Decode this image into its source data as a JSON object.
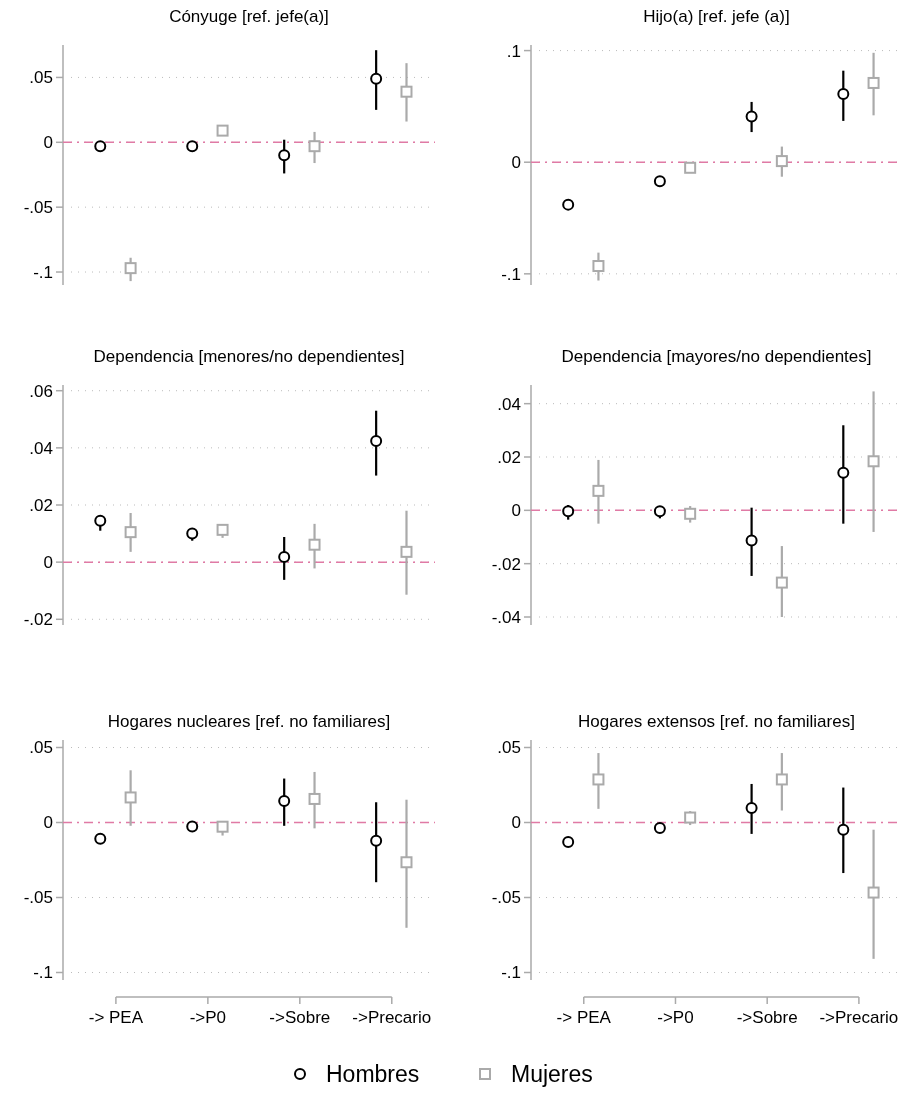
{
  "chart_data": [
    {
      "type": "scatter",
      "title": "Cónyuge [ref.  jefe(a)]",
      "categories": [
        null,
        null,
        null,
        null
      ],
      "ylim": [
        -0.11,
        0.075
      ],
      "yticks": [
        {
          "value": -0.1,
          "label": "-.1"
        },
        {
          "value": -0.05,
          "label": "-.05"
        },
        {
          "value": 0,
          "label": "0"
        },
        {
          "value": 0.05,
          "label": ".05"
        }
      ],
      "grid": "y",
      "tick_labels": "y",
      "legend": false,
      "ref_lines": [
        {
          "axis": "y",
          "value": 0,
          "color": "#e07aa5",
          "line_style": "dashed"
        }
      ],
      "series": [
        {
          "color": "#000000",
          "marker": "circle",
          "values": [
            -0.003,
            -0.003,
            -0.01,
            0.049
          ],
          "errors": [
            [
              -0.005,
              -0.001
            ],
            [
              -0.006,
              0.0
            ],
            [
              -0.024,
              0.002
            ],
            [
              0.025,
              0.071
            ]
          ]
        },
        {
          "color": "#aaaaaa",
          "marker": "square",
          "values": [
            -0.097,
            0.009,
            -0.003,
            0.039
          ],
          "errors": [
            [
              -0.107,
              -0.089
            ],
            [
              0.007,
              0.011
            ],
            [
              -0.016,
              0.008
            ],
            [
              0.016,
              0.061
            ]
          ]
        }
      ]
    },
    {
      "type": "scatter",
      "title": "Hijo(a) [ref.  jefe (a)]",
      "categories": [
        null,
        null,
        null,
        null
      ],
      "ylim": [
        -0.11,
        0.105
      ],
      "yticks": [
        {
          "value": -0.1,
          "label": "-.1"
        },
        {
          "value": 0,
          "label": "0"
        },
        {
          "value": 0.1,
          "label": ".1"
        }
      ],
      "grid": "y",
      "tick_labels": "y",
      "legend": false,
      "ref_lines": [
        {
          "axis": "y",
          "value": 0,
          "color": "#e07aa5",
          "line_style": "dashed"
        }
      ],
      "series": [
        {
          "color": "#000000",
          "marker": "circle",
          "values": [
            -0.038,
            -0.017,
            0.041,
            0.061
          ],
          "errors": [
            [
              -0.042,
              -0.034
            ],
            [
              -0.019,
              -0.015
            ],
            [
              0.027,
              0.054
            ],
            [
              0.037,
              0.082
            ]
          ]
        },
        {
          "color": "#aaaaaa",
          "marker": "square",
          "values": [
            -0.093,
            -0.005,
            0.001,
            0.071
          ],
          "errors": [
            [
              -0.106,
              -0.081
            ],
            [
              -0.008,
              -0.002
            ],
            [
              -0.013,
              0.014
            ],
            [
              0.042,
              0.098
            ]
          ]
        }
      ]
    },
    {
      "type": "scatter",
      "title": "Dependencia [menores/no dependientes]",
      "categories": [
        null,
        null,
        null,
        null
      ],
      "ylim": [
        -0.022,
        0.062
      ],
      "yticks": [
        {
          "value": -0.02,
          "label": "-.02"
        },
        {
          "value": 0,
          "label": "0"
        },
        {
          "value": 0.02,
          "label": ".02"
        },
        {
          "value": 0.04,
          "label": ".04"
        },
        {
          "value": 0.06,
          "label": ".06"
        }
      ],
      "grid": "y",
      "tick_labels": "y",
      "legend": false,
      "ref_lines": [
        {
          "axis": "y",
          "value": 0,
          "color": "#e07aa5",
          "line_style": "dashed"
        }
      ],
      "series": [
        {
          "color": "#000000",
          "marker": "circle",
          "values": [
            0.0145,
            0.01,
            0.0018,
            0.0424
          ],
          "errors": [
            [
              0.011,
              0.016
            ],
            [
              0.0075,
              0.0115
            ],
            [
              -0.0062,
              0.0088
            ],
            [
              0.0303,
              0.053
            ]
          ]
        },
        {
          "color": "#aaaaaa",
          "marker": "square",
          "values": [
            0.0105,
            0.0113,
            0.0061,
            0.0036
          ],
          "errors": [
            [
              0.0036,
              0.0172
            ],
            [
              0.0085,
              0.013
            ],
            [
              -0.0022,
              0.0134
            ],
            [
              -0.0114,
              0.018
            ]
          ]
        }
      ]
    },
    {
      "type": "scatter",
      "title": "Dependencia [mayores/no dependientes]",
      "categories": [
        null,
        null,
        null,
        null
      ],
      "ylim": [
        -0.043,
        0.047
      ],
      "yticks": [
        {
          "value": -0.04,
          "label": "-.04"
        },
        {
          "value": -0.02,
          "label": "-.02"
        },
        {
          "value": 0,
          "label": "0"
        },
        {
          "value": 0.02,
          "label": ".02"
        },
        {
          "value": 0.04,
          "label": ".04"
        }
      ],
      "grid": "y",
      "tick_labels": "y",
      "legend": false,
      "ref_lines": [
        {
          "axis": "y",
          "value": 0,
          "color": "#e07aa5",
          "line_style": "dashed"
        }
      ],
      "series": [
        {
          "color": "#000000",
          "marker": "circle",
          "values": [
            -0.0003,
            -0.0003,
            -0.0113,
            0.0141
          ],
          "errors": [
            [
              -0.0035,
              0.002
            ],
            [
              -0.003,
              0.0015
            ],
            [
              -0.0246,
              0.001
            ],
            [
              -0.005,
              0.0319
            ]
          ]
        },
        {
          "color": "#aaaaaa",
          "marker": "square",
          "values": [
            0.0073,
            -0.0013,
            -0.0271,
            0.0184
          ],
          "errors": [
            [
              -0.005,
              0.0189
            ],
            [
              -0.0046,
              0.0016
            ],
            [
              -0.04,
              -0.0134
            ],
            [
              -0.0081,
              0.0446
            ]
          ]
        }
      ]
    },
    {
      "type": "scatter",
      "title": "Hogares nucleares [ref.  no familiares]",
      "categories": [
        "-> PEA",
        "->P0",
        "->Sobre",
        "->Precario"
      ],
      "ylim": [
        -0.105,
        0.055
      ],
      "yticks": [
        {
          "value": -0.1,
          "label": "-.1"
        },
        {
          "value": -0.05,
          "label": "-.05"
        },
        {
          "value": 0,
          "label": "0"
        },
        {
          "value": 0.05,
          "label": ".05"
        }
      ],
      "grid": "y",
      "legend": "bottom",
      "ref_lines": [
        {
          "axis": "y",
          "value": 0,
          "color": "#e07aa5",
          "line_style": "dashed"
        }
      ],
      "series": [
        {
          "name": "Hombres",
          "color": "#000000",
          "marker": "circle",
          "values": [
            -0.0109,
            -0.0026,
            0.0143,
            -0.0122
          ],
          "errors": [
            [
              -0.0125,
              -0.0095
            ],
            [
              -0.004,
              -0.001
            ],
            [
              -0.0022,
              0.0293
            ],
            [
              -0.0398,
              0.0135
            ]
          ]
        },
        {
          "name": "Mujeres",
          "color": "#aaaaaa",
          "marker": "square",
          "values": [
            0.0167,
            -0.0028,
            0.0157,
            -0.0265
          ],
          "errors": [
            [
              -0.0022,
              0.0348
            ],
            [
              -0.0087,
              0.001
            ],
            [
              -0.0039,
              0.0337
            ],
            [
              -0.0702,
              0.0152
            ]
          ]
        }
      ]
    },
    {
      "type": "scatter",
      "title": "Hogares extensos [ref.  no familiares]",
      "categories": [
        "-> PEA",
        "->P0",
        "->Sobre",
        "->Precario"
      ],
      "ylim": [
        -0.105,
        0.055
      ],
      "yticks": [
        {
          "value": -0.1,
          "label": "-.1"
        },
        {
          "value": -0.05,
          "label": "-.05"
        },
        {
          "value": 0,
          "label": "0"
        },
        {
          "value": 0.05,
          "label": ".05"
        }
      ],
      "grid": "y",
      "legend": false,
      "ref_lines": [
        {
          "axis": "y",
          "value": 0,
          "color": "#e07aa5",
          "line_style": "dashed"
        }
      ],
      "series": [
        {
          "color": "#000000",
          "marker": "circle",
          "values": [
            -0.013,
            -0.0037,
            0.0096,
            -0.0048
          ],
          "errors": [
            [
              -0.015,
              -0.011
            ],
            [
              -0.0055,
              -0.002
            ],
            [
              -0.0076,
              0.0257
            ],
            [
              -0.0337,
              0.0233
            ]
          ]
        },
        {
          "color": "#aaaaaa",
          "marker": "square",
          "values": [
            0.0287,
            0.0033,
            0.0287,
            -0.0467
          ],
          "errors": [
            [
              0.0091,
              0.0463
            ],
            [
              -0.0017,
              0.0076
            ],
            [
              0.008,
              0.0463
            ],
            [
              -0.0909,
              -0.0048
            ]
          ]
        }
      ]
    }
  ]
}
